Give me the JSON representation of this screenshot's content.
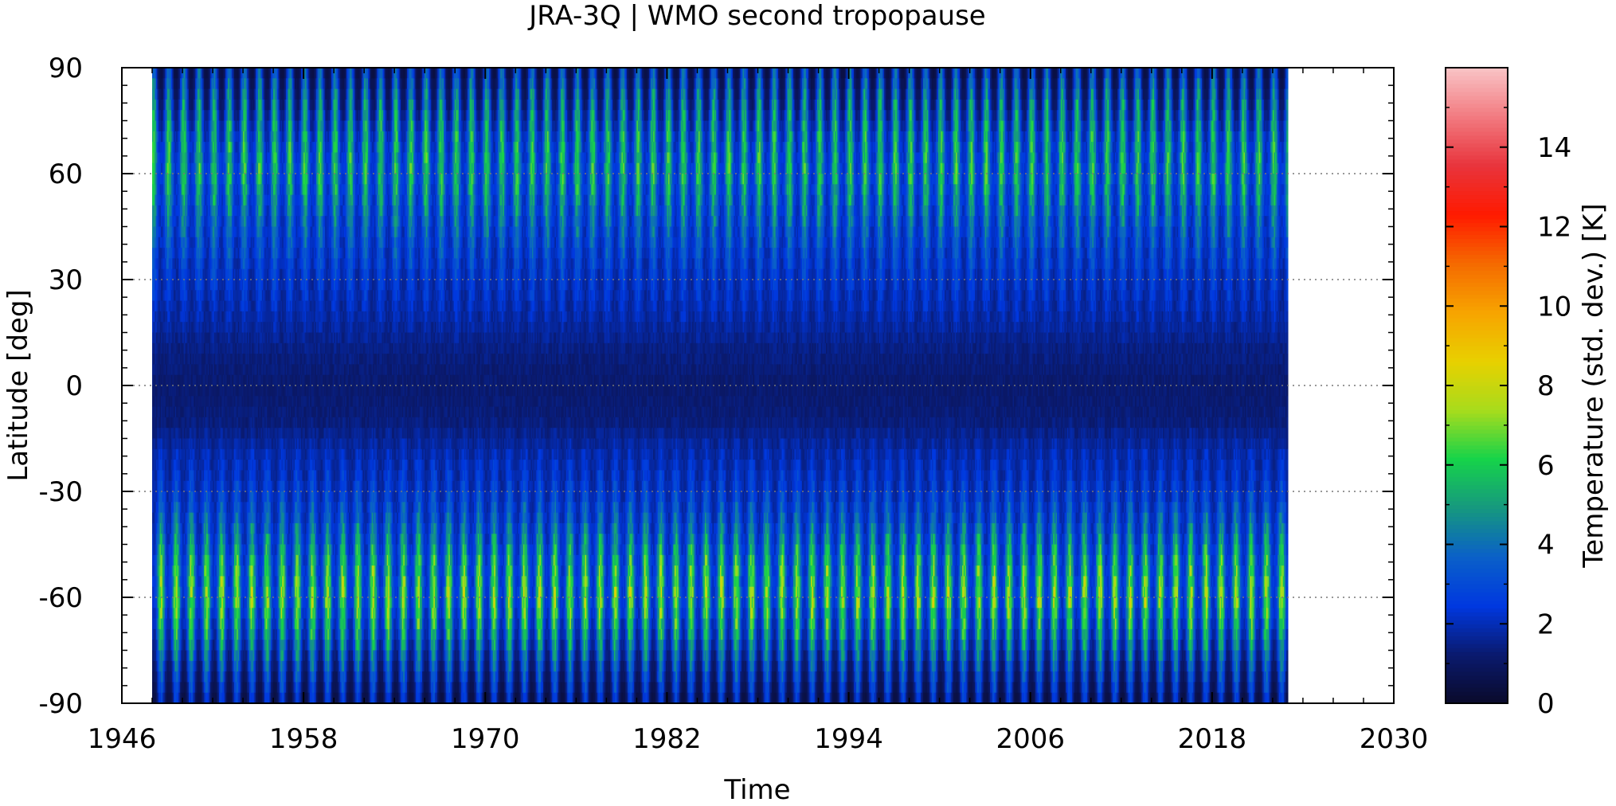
{
  "chart_data": {
    "type": "heatmap",
    "title": "JRA-3Q | WMO second tropopause",
    "xlabel": "Time",
    "ylabel": "Latitude [deg]",
    "colorbar_label": "Temperature (std. dev.) [K]",
    "xlim": [
      1946,
      2030
    ],
    "ylim": [
      -90,
      90
    ],
    "x_ticks": [
      1946,
      1958,
      1970,
      1982,
      1994,
      2006,
      2018,
      2030
    ],
    "y_ticks": [
      -90,
      -60,
      -30,
      0,
      30,
      60,
      90
    ],
    "colorbar_range": [
      0,
      16
    ],
    "colorbar_ticks": [
      0,
      2,
      4,
      6,
      8,
      10,
      12,
      14
    ],
    "data_x_range": [
      1948,
      2023
    ],
    "grid": "dotted horizontal lines at y ticks",
    "colormap": [
      "#0a0a2a",
      "#0a1a6e",
      "#0038e0",
      "#0a60c8",
      "#16987f",
      "#16d34a",
      "#a8dc1c",
      "#e8d000",
      "#f7a400",
      "#f56a00",
      "#ff1a00",
      "#e8343c",
      "#f27a80",
      "#f9c4c6"
    ],
    "latitude_profile": [
      {
        "lat": 90,
        "summer": 3.8,
        "winter": 0.4
      },
      {
        "lat": 80,
        "summer": 5.5,
        "winter": 1.0
      },
      {
        "lat": 70,
        "summer": 6.0,
        "winter": 2.0
      },
      {
        "lat": 60,
        "summer": 6.3,
        "winter": 2.4
      },
      {
        "lat": 50,
        "summer": 5.2,
        "winter": 2.2
      },
      {
        "lat": 40,
        "summer": 4.0,
        "winter": 2.0
      },
      {
        "lat": 30,
        "summer": 3.0,
        "winter": 1.8
      },
      {
        "lat": 20,
        "summer": 2.3,
        "winter": 1.6
      },
      {
        "lat": 10,
        "summer": 1.6,
        "winter": 1.3
      },
      {
        "lat": 0,
        "summer": 1.3,
        "winter": 1.1
      },
      {
        "lat": -10,
        "summer": 1.5,
        "winter": 1.2
      },
      {
        "lat": -20,
        "summer": 2.4,
        "winter": 1.6
      },
      {
        "lat": -30,
        "summer": 3.2,
        "winter": 1.8
      },
      {
        "lat": -40,
        "summer": 4.8,
        "winter": 2.0
      },
      {
        "lat": -50,
        "summer": 6.6,
        "winter": 2.3
      },
      {
        "lat": -60,
        "summer": 7.6,
        "winter": 2.4
      },
      {
        "lat": -70,
        "summer": 6.2,
        "winter": 1.8
      },
      {
        "lat": -80,
        "summer": 4.2,
        "winter": 1.0
      },
      {
        "lat": -90,
        "summer": 2.6,
        "winter": 0.4
      }
    ]
  }
}
